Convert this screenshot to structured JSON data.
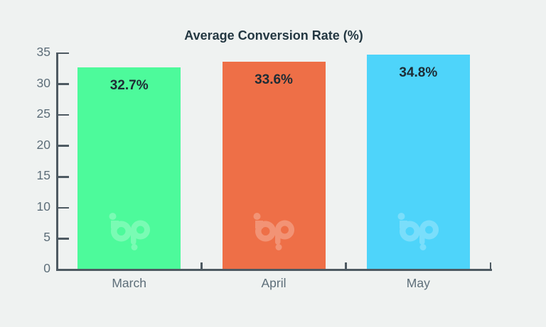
{
  "page": {
    "background_color": "#eff2f1"
  },
  "chart_data": {
    "type": "bar",
    "title": "Average Conversion Rate (%)",
    "categories": [
      "March",
      "April",
      "May"
    ],
    "values": [
      32.7,
      33.6,
      34.8
    ],
    "value_labels": [
      "32.7%",
      "33.6%",
      "34.8%"
    ],
    "bar_colors": [
      "#4dfa9b",
      "#ee6f47",
      "#4ed4fa"
    ],
    "xlabel": "",
    "ylabel": "",
    "ylim": [
      0,
      35
    ],
    "ytick_step": 5,
    "ytick_labels": [
      "0",
      "5",
      "10",
      "15",
      "20",
      "25",
      "30",
      "35"
    ],
    "grid": false,
    "legend": "none",
    "axis_color": "#4e5a62",
    "tick_label_color": "#5d6e79",
    "title_color": "#243842",
    "value_label_color": "#1e2c35",
    "watermark_icon": "bp-logo-watermark"
  }
}
